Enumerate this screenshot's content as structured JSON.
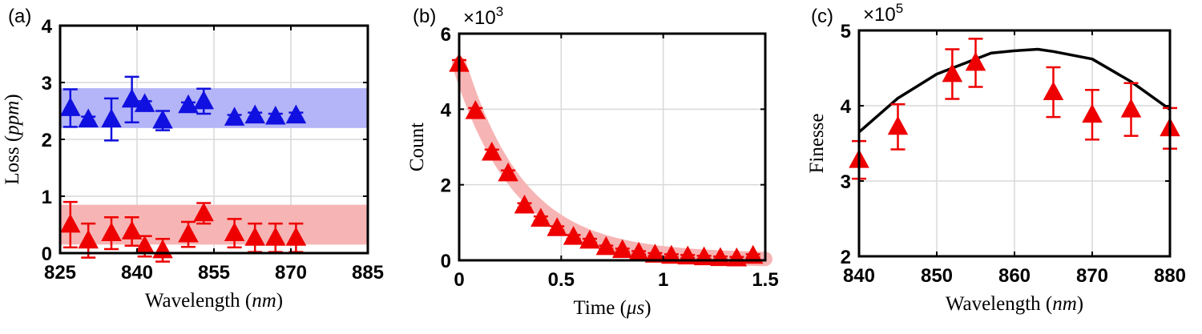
{
  "colors": {
    "blue": "#1010e0",
    "red": "#ee0000",
    "blue_band": "#b4b4f8",
    "red_band": "#f7b4b4",
    "black_line": "#000000",
    "grid": "#d9d9d9"
  },
  "chart_data": [
    {
      "panel_label": "(a)",
      "type": "scatter",
      "xlabel": "Wavelength",
      "xlabel_unit": "nm",
      "ylabel": "Loss",
      "ylabel_unit": "ppm",
      "xlim": [
        825,
        885
      ],
      "ylim": [
        0,
        4
      ],
      "xticks": [
        "825",
        "840",
        "855",
        "870",
        "885"
      ],
      "yticks": [
        "0",
        "1",
        "2",
        "3",
        "4"
      ],
      "bands": [
        {
          "color": "blue",
          "y0": 2.2,
          "y1": 2.9
        },
        {
          "color": "red",
          "y0": 0.15,
          "y1": 0.85
        }
      ],
      "series": [
        {
          "color": "blue",
          "x": [
            827,
            830.5,
            835,
            839,
            841.5,
            845,
            850,
            853,
            859,
            863,
            867,
            871
          ],
          "y": [
            2.55,
            2.35,
            2.35,
            2.7,
            2.62,
            2.33,
            2.6,
            2.67,
            2.38,
            2.42,
            2.4,
            2.42
          ],
          "err": [
            0.33,
            0.05,
            0.37,
            0.4,
            0.05,
            0.17,
            0.05,
            0.22,
            0.05,
            0.05,
            0.05,
            0.05
          ]
        },
        {
          "color": "red",
          "x": [
            827,
            830.5,
            835,
            839,
            841.5,
            845,
            850,
            853,
            859,
            863,
            867,
            871
          ],
          "y": [
            0.5,
            0.22,
            0.35,
            0.38,
            0.12,
            0.05,
            0.33,
            0.7,
            0.35,
            0.27,
            0.27,
            0.27
          ],
          "err": [
            0.4,
            0.3,
            0.28,
            0.25,
            0.18,
            0.2,
            0.22,
            0.18,
            0.25,
            0.25,
            0.25,
            0.25
          ]
        }
      ]
    },
    {
      "panel_label": "(b)",
      "type": "scatter",
      "xlabel": "Time",
      "xlabel_unit": "μs",
      "ylabel": "Count",
      "multiplier_base": "×10",
      "multiplier_exp": "3",
      "xlim": [
        0,
        1.5
      ],
      "ylim": [
        0,
        6
      ],
      "xticks": [
        "0",
        "0.5",
        "1",
        "1.5"
      ],
      "yticks": [
        "0",
        "2",
        "4",
        "6"
      ],
      "fit_band": {
        "amplitude": 5.2,
        "tau": 0.3,
        "halfwidth": 0.17
      },
      "series": [
        {
          "color": "red",
          "x": [
            0,
            0.08,
            0.16,
            0.24,
            0.32,
            0.4,
            0.48,
            0.56,
            0.64,
            0.72,
            0.8,
            0.88,
            0.96,
            1.04,
            1.12,
            1.2,
            1.28,
            1.36,
            1.44
          ],
          "y": [
            5.2,
            3.95,
            2.85,
            2.3,
            1.45,
            1.1,
            0.85,
            0.62,
            0.52,
            0.35,
            0.27,
            0.2,
            0.15,
            0.12,
            0.1,
            0.08,
            0.06,
            0.05,
            0.12
          ],
          "err": [
            0.1,
            0.08,
            0.08,
            0.08,
            0.06,
            0.06,
            0.05,
            0.05,
            0.05,
            0.04,
            0.04,
            0.04,
            0.04,
            0.04,
            0.04,
            0.04,
            0.04,
            0.04,
            0.04
          ]
        }
      ]
    },
    {
      "panel_label": "(c)",
      "type": "line",
      "xlabel": "Wavelength",
      "xlabel_unit": "nm",
      "ylabel": "Finesse",
      "multiplier_base": "×10",
      "multiplier_exp": "5",
      "xlim": [
        840,
        880
      ],
      "ylim": [
        2,
        5
      ],
      "xticks": [
        "840",
        "850",
        "860",
        "870",
        "880"
      ],
      "yticks": [
        "2",
        "3",
        "4",
        "5"
      ],
      "line": {
        "color": "black",
        "x": [
          840,
          845,
          850,
          855,
          857,
          860,
          863,
          865,
          870,
          875,
          880
        ],
        "y": [
          3.65,
          4.1,
          4.42,
          4.62,
          4.7,
          4.73,
          4.75,
          4.72,
          4.62,
          4.32,
          3.95
        ]
      },
      "series": [
        {
          "color": "red",
          "x": [
            840,
            845,
            852,
            855,
            865,
            870,
            875,
            880
          ],
          "y": [
            3.28,
            3.72,
            4.42,
            4.57,
            4.18,
            3.88,
            3.95,
            3.7
          ],
          "err": [
            0.25,
            0.3,
            0.33,
            0.32,
            0.33,
            0.33,
            0.35,
            0.27
          ]
        }
      ]
    }
  ]
}
